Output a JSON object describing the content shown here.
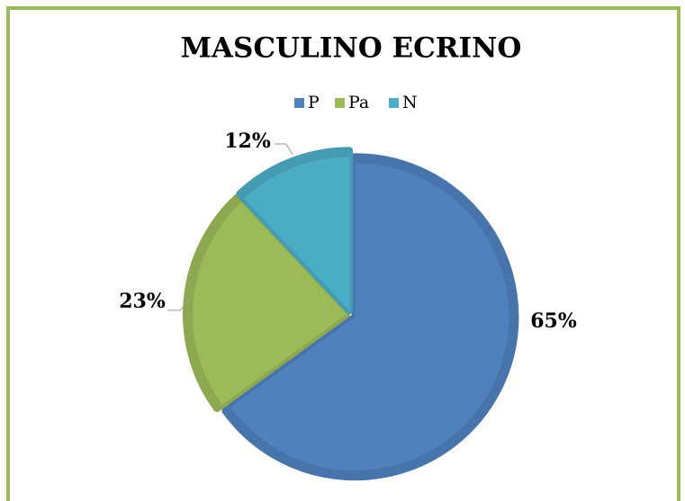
{
  "chart_data": {
    "type": "pie",
    "title": "MASCULINO ECRINO",
    "categories": [
      "P",
      "Pa",
      "N"
    ],
    "values": [
      65,
      23,
      12
    ],
    "value_labels": [
      "65%",
      "23%",
      "12%"
    ],
    "colors": [
      "#4f81bd",
      "#9bbb59",
      "#4bacc6"
    ],
    "legend": "top"
  }
}
